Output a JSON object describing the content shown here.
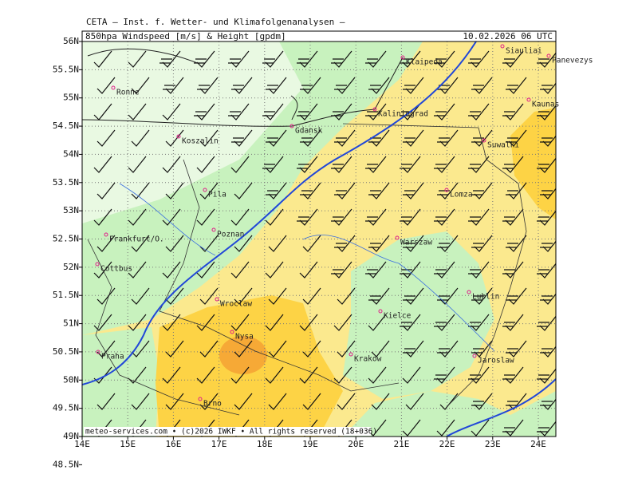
{
  "header": {
    "text": "CETA – Inst. f. Wetter- und Klimafolgenanalysen –"
  },
  "title": {
    "left": "850hpa Windspeed [m/s] & Height [gpdm]",
    "right": "10.02.2026 06 UTC"
  },
  "axes": {
    "lat_labels": [
      "56N",
      "55.5N",
      "55N",
      "54.5N",
      "54N",
      "53.5N",
      "53N",
      "52.5N",
      "52N",
      "51.5N",
      "51N",
      "50.5N",
      "50N",
      "49.5N",
      "49N",
      "48.5N"
    ],
    "lon_labels": [
      "14E",
      "15E",
      "16E",
      "17E",
      "18E",
      "19E",
      "20E",
      "21E",
      "22E",
      "23E",
      "24E"
    ]
  },
  "cities": [
    "Ronne",
    "Koszalin",
    "Gdansk",
    "Klaipeda",
    "Kaliningrad",
    "Siauliai",
    "Panevezys",
    "Kaunas",
    "Suwalki",
    "Pila",
    "Lomza",
    "Frankfurt/O.",
    "Poznan",
    "Warszaw",
    "Cottbus",
    "Lublin",
    "Wroclaw",
    "Kielce",
    "Nysa",
    "Praha",
    "Krakow",
    "Jaroslaw",
    "Brno"
  ],
  "footer": {
    "text": "meteo-services.com • (c)2026 IWKF • All rights reserved (18+036)"
  }
}
